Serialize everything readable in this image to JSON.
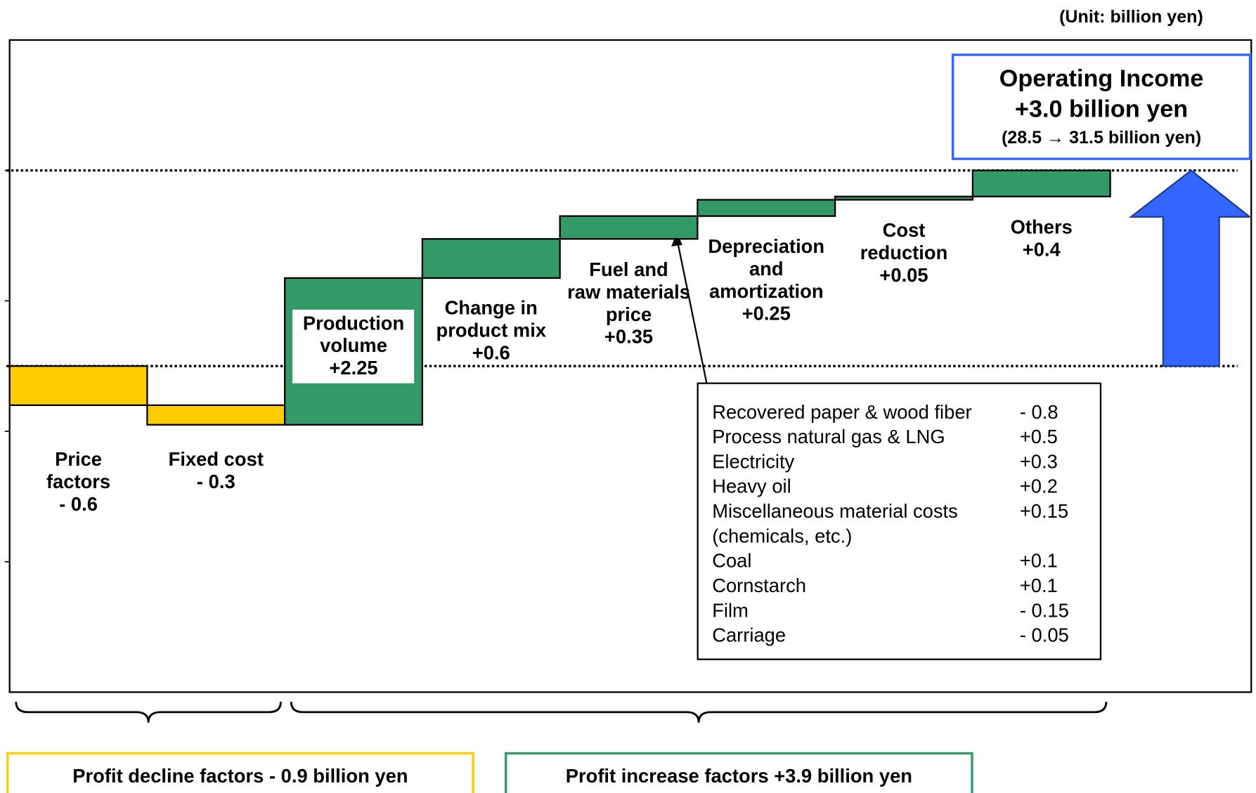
{
  "unit": "(Unit: billion yen)",
  "chart_data": {
    "type": "waterfall",
    "start": 28.5,
    "categories": [
      "Price\nfactors",
      "Fixed cost",
      "Production\nvolume",
      "Change in\nproduct mix",
      "Fuel and\nraw materials\nprice",
      "Depreciation\nand\namortization",
      "Cost\nreduction",
      "Others"
    ],
    "values": [
      -0.6,
      -0.3,
      2.25,
      0.6,
      0.35,
      0.25,
      0.05,
      0.4
    ],
    "value_labels": [
      "- 0.6",
      "- 0.3",
      "+2.25",
      "+0.6",
      "+0.35",
      "+0.25",
      "+0.05",
      "+0.4"
    ],
    "ylim": [
      23.5,
      33.5
    ],
    "yticks": [
      25.5,
      27.5,
      29.5,
      31.5
    ],
    "groups": [
      {
        "label": "Profit decline factors - 0.9 billion yen",
        "color": "#ffcc00"
      },
      {
        "label": "Profit increase factors +3.9 billion yen",
        "color": "#339966"
      }
    ],
    "total": {
      "title": "Operating Income",
      "value": 3.0,
      "label": "+3.0 billion yen",
      "note": "(28.5 → 31.5 billion yen)",
      "color": "#3366ff"
    },
    "breakdown": {
      "rows": [
        {
          "name": "Recovered paper & wood fiber",
          "value": "- 0.8"
        },
        {
          "name": "Process natural gas & LNG",
          "value": "+0.5"
        },
        {
          "name": "Electricity",
          "value": "+0.3"
        },
        {
          "name": "Heavy oil",
          "value": "+0.2"
        },
        {
          "name": "Miscellaneous material costs (chemicals, etc.)",
          "value": "+0.15"
        },
        {
          "name": "Coal",
          "value": "+0.1"
        },
        {
          "name": "Cornstarch",
          "value": "+0.1"
        },
        {
          "name": "Film",
          "value": "- 0.15"
        },
        {
          "name": "Carriage",
          "value": "- 0.05"
        }
      ]
    }
  }
}
